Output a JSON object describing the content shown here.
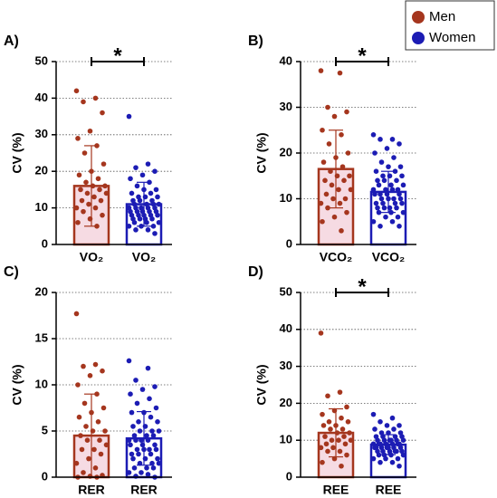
{
  "legend": [
    "Men",
    "Women"
  ],
  "chart_data": [
    {
      "type": "bar",
      "panel": "A)",
      "ylabel": "CV (%)",
      "categories": [
        "VO₂",
        "VO₂"
      ],
      "colors": [
        "#a5361e",
        "#1c1cb4"
      ],
      "values": [
        16,
        11
      ],
      "errors": [
        11,
        6
      ],
      "annotation": "*",
      "points": [
        [
          42,
          40,
          39,
          36,
          31,
          29,
          27,
          25,
          22,
          20,
          19,
          18,
          17,
          16,
          16,
          15,
          15,
          14,
          14,
          13,
          12,
          12,
          11,
          10,
          10,
          9,
          8,
          7,
          6,
          5
        ],
        [
          35,
          22,
          21,
          20,
          19,
          18,
          17,
          16,
          15,
          15,
          14,
          14,
          13,
          13,
          13,
          12,
          12,
          12,
          11,
          11,
          11,
          11,
          10,
          10,
          10,
          10,
          10,
          9,
          9,
          9,
          9,
          9,
          8,
          8,
          8,
          8,
          8,
          7,
          7,
          7,
          7,
          6,
          6,
          6,
          5,
          5,
          5,
          4,
          4,
          3
        ]
      ],
      "ylim": [
        0,
        50
      ],
      "yticks": [
        0,
        10,
        20,
        30,
        40,
        50
      ],
      "grid": true
    },
    {
      "type": "bar",
      "panel": "B)",
      "ylabel": "CV (%)",
      "categories": [
        "VCO₂",
        "VCO₂"
      ],
      "colors": [
        "#a5361e",
        "#1c1cb4"
      ],
      "values": [
        16.5,
        11.5
      ],
      "errors": [
        8.5,
        4.5
      ],
      "annotation": "*",
      "points": [
        [
          38,
          37.5,
          30,
          29,
          28,
          25,
          24,
          22,
          20,
          19,
          18,
          17,
          16,
          15,
          15,
          14,
          14,
          13,
          12,
          12,
          11,
          10,
          10,
          9,
          9,
          8,
          7,
          6,
          5,
          3
        ],
        [
          24,
          23,
          23,
          22,
          21,
          20,
          19,
          18,
          17,
          17,
          16,
          16,
          15,
          15,
          15,
          14,
          14,
          14,
          13,
          13,
          13,
          12,
          12,
          12,
          12,
          11,
          11,
          11,
          11,
          10,
          10,
          10,
          10,
          9,
          9,
          9,
          9,
          8,
          8,
          8,
          8,
          7,
          7,
          7,
          6,
          6,
          5,
          5,
          4,
          4
        ]
      ],
      "ylim": [
        0,
        40
      ],
      "yticks": [
        0,
        10,
        20,
        30,
        40
      ],
      "grid": true
    },
    {
      "type": "bar",
      "panel": "C)",
      "ylabel": "CV (%)",
      "categories": [
        "RER",
        "RER"
      ],
      "colors": [
        "#a5361e",
        "#1c1cb4"
      ],
      "values": [
        4.5,
        4.2
      ],
      "errors": [
        4.5,
        2.9
      ],
      "points": [
        [
          17.7,
          12.2,
          12,
          11.5,
          11,
          10,
          9,
          8,
          7.5,
          7,
          6.5,
          6,
          5.5,
          5,
          5,
          4.5,
          4,
          4,
          3.5,
          3,
          3,
          2.5,
          2,
          1.5,
          1,
          0.5,
          0.2,
          0.1,
          0,
          0
        ],
        [
          12.6,
          11.8,
          10.5,
          9.8,
          9.5,
          9,
          8.5,
          8,
          7.5,
          7,
          7,
          6.5,
          6,
          6,
          5.5,
          5.5,
          5,
          5,
          5,
          4.5,
          4.5,
          4.5,
          4,
          4,
          4,
          4,
          3.5,
          3.5,
          3.5,
          3,
          3,
          3,
          3,
          2.5,
          2.5,
          2.5,
          2,
          2,
          2,
          1.5,
          1.5,
          1.5,
          1,
          1,
          1,
          0.5,
          0.5,
          0.3,
          0.1,
          0
        ]
      ],
      "ylim": [
        0,
        20
      ],
      "yticks": [
        0,
        5,
        10,
        15,
        20
      ],
      "grid": true
    },
    {
      "type": "bar",
      "panel": "D)",
      "ylabel": "CV (%)",
      "categories": [
        "REE",
        "REE"
      ],
      "colors": [
        "#a5361e",
        "#1c1cb4"
      ],
      "values": [
        12,
        8.8
      ],
      "errors": [
        6.5,
        2.7
      ],
      "annotation": "*",
      "points": [
        [
          39,
          23,
          22,
          19,
          18,
          17,
          16,
          15,
          15,
          14,
          14,
          13,
          13,
          12,
          12,
          11,
          11,
          10,
          10,
          10,
          9,
          9,
          8,
          8,
          7,
          7,
          6,
          5,
          4,
          3
        ],
        [
          17,
          16,
          15,
          14,
          14,
          13,
          13,
          12,
          12,
          12,
          11,
          11,
          11,
          11,
          10,
          10,
          10,
          10,
          10,
          10,
          9,
          9,
          9,
          9,
          9,
          9,
          9,
          8,
          8,
          8,
          8,
          8,
          8,
          8,
          7,
          7,
          7,
          7,
          7,
          7,
          6,
          6,
          6,
          6,
          5,
          5,
          5,
          4,
          4,
          3
        ]
      ],
      "ylim": [
        0,
        50
      ],
      "yticks": [
        0,
        10,
        20,
        30,
        40,
        50
      ],
      "grid": true
    }
  ]
}
